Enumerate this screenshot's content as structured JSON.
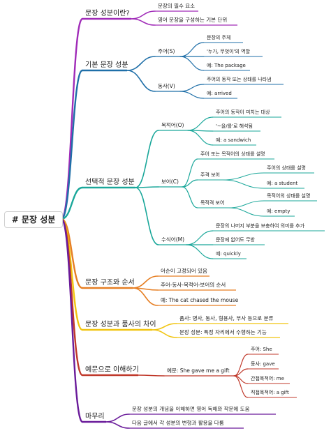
{
  "colors": {
    "purple": "#a02bb8",
    "blue": "#1f6fa8",
    "teal": "#1aa79a",
    "orange": "#e67e22",
    "yellow": "#f1c40f",
    "red": "#c0392b",
    "violet": "#6a1b9a"
  },
  "root": "# 문장 성분",
  "branches": [
    {
      "label": "문장 성분이란?",
      "color": "purple",
      "children": [
        {
          "label": "문장의 필수 요소"
        },
        {
          "label": "영어 문장을 구성하는 기본 단위"
        }
      ]
    },
    {
      "label": "기본 문장 성분",
      "color": "blue",
      "children": [
        {
          "label": "주어(S)",
          "children": [
            {
              "label": "문장의 주체"
            },
            {
              "label": "'누가, 무엇이'의 역할"
            },
            {
              "label": "예: The package"
            }
          ]
        },
        {
          "label": "동사(V)",
          "children": [
            {
              "label": "주어의 동작 또는 상태를 나타냄"
            },
            {
              "label": "예: arrived"
            }
          ]
        }
      ]
    },
    {
      "label": "선택적 문장 성분",
      "color": "teal",
      "children": [
        {
          "label": "목적어(O)",
          "children": [
            {
              "label": "주어의 동작이 미치는 대상"
            },
            {
              "label": "'~을/를'로 해석됨"
            },
            {
              "label": "예: a sandwich"
            }
          ]
        },
        {
          "label": "보어(C)",
          "children": [
            {
              "label": "주어 또는 목적어의 상태를 설명"
            },
            {
              "label": "주격 보어",
              "children": [
                {
                  "label": "주어의 상태를 설명"
                },
                {
                  "label": "예: a student"
                }
              ]
            },
            {
              "label": "목적격 보어",
              "children": [
                {
                  "label": "목적어의 상태를 설명"
                },
                {
                  "label": "예: empty"
                }
              ]
            }
          ]
        },
        {
          "label": "수식어(M)",
          "children": [
            {
              "label": "문장의 나머지 부분을 보충하여 의미를 추가"
            },
            {
              "label": "문장에 없어도 무방"
            },
            {
              "label": "예: quickly"
            }
          ]
        }
      ]
    },
    {
      "label": "문장 구조와 순서",
      "color": "orange",
      "children": [
        {
          "label": "어순이 고정되어 있음"
        },
        {
          "label": "주어-동사-목적어-보어의 순서"
        },
        {
          "label": "예: The cat chased the mouse"
        }
      ]
    },
    {
      "label": "문장 성분과 품사의 차이",
      "color": "yellow",
      "children": [
        {
          "label": "품사: 명사, 동사, 형용사, 부사 등으로 분류"
        },
        {
          "label": "문장 성분: 특정 자리에서 수행하는 기능"
        }
      ]
    },
    {
      "label": "예문으로 이해하기",
      "color": "red",
      "children": [
        {
          "label": "예문: She gave me a gift",
          "children": [
            {
              "label": "주어: She"
            },
            {
              "label": "동사: gave"
            },
            {
              "label": "간접목적어: me"
            },
            {
              "label": "직접목적어: a gift"
            }
          ]
        }
      ]
    },
    {
      "label": "마무리",
      "color": "violet",
      "children": [
        {
          "label": "문장 성분의 개념을 이해하면 영어 독해와 작문에 도움"
        },
        {
          "label": "다음 글에서 각 성분의 변형과 활용을 다룸"
        }
      ]
    }
  ]
}
